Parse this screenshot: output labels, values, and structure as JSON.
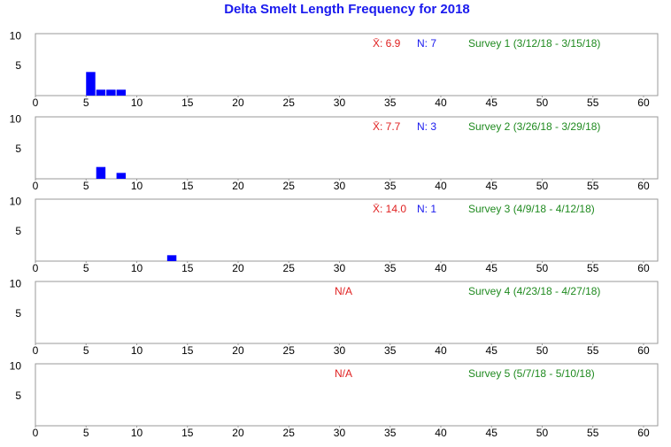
{
  "title": "Delta Smelt Length Frequency for 2018",
  "chart_data": [
    {
      "type": "histogram",
      "subtitle": "Survey 1 (3/12/18 - 3/15/18)",
      "mean_label": "X̄: 6.9",
      "n_label": "N: 7",
      "bins": [
        5,
        6,
        7,
        8,
        9
      ],
      "counts": [
        4,
        1,
        1,
        1
      ],
      "color": "#0000ff",
      "xlim": [
        0,
        61.4
      ],
      "xticks": [
        0,
        5,
        10,
        15,
        20,
        25,
        30,
        35,
        40,
        45,
        50,
        55,
        60
      ],
      "ylim": [
        0,
        10.5
      ],
      "yticks": [
        5,
        10
      ]
    },
    {
      "type": "histogram",
      "subtitle": "Survey 2 (3/26/18 - 3/29/18)",
      "mean_label": "X̄: 7.7",
      "n_label": "N: 3",
      "bins": [
        6,
        7,
        8,
        9
      ],
      "counts": [
        2,
        0,
        1
      ],
      "color": "#0000ff",
      "xlim": [
        0,
        61.4
      ],
      "xticks": [
        0,
        5,
        10,
        15,
        20,
        25,
        30,
        35,
        40,
        45,
        50,
        55,
        60
      ],
      "ylim": [
        0,
        10.5
      ],
      "yticks": [
        5,
        10
      ]
    },
    {
      "type": "histogram",
      "subtitle": "Survey 3 (4/9/18 - 4/12/18)",
      "mean_label": "X̄: 14.0",
      "n_label": "N: 1",
      "bins": [
        13,
        14
      ],
      "counts": [
        1
      ],
      "color": "#0000ff",
      "xlim": [
        0,
        61.4
      ],
      "xticks": [
        0,
        5,
        10,
        15,
        20,
        25,
        30,
        35,
        40,
        45,
        50,
        55,
        60
      ],
      "ylim": [
        0,
        10.5
      ],
      "yticks": [
        5,
        10
      ]
    },
    {
      "type": "histogram",
      "subtitle": "Survey 4 (4/23/18 - 4/27/18)",
      "annotation": "N/A",
      "xlim": [
        0,
        61.4
      ],
      "xticks": [
        0,
        5,
        10,
        15,
        20,
        25,
        30,
        35,
        40,
        45,
        50,
        55,
        60
      ],
      "ylim": [
        0,
        10.5
      ],
      "yticks": [
        5,
        10
      ]
    },
    {
      "type": "histogram",
      "subtitle": "Survey 5 (5/7/18 - 5/10/18)",
      "annotation": "N/A",
      "xlim": [
        0,
        61.4
      ],
      "xticks": [
        0,
        5,
        10,
        15,
        20,
        25,
        30,
        35,
        40,
        45,
        50,
        55,
        60
      ],
      "ylim": [
        0,
        10.5
      ],
      "yticks": [
        5,
        10
      ]
    }
  ]
}
